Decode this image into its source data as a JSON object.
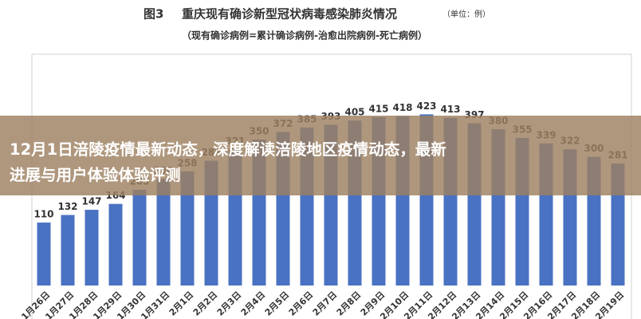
{
  "chart_data": {
    "type": "bar",
    "figure_label": "图3",
    "title": "重庆现有确诊新型冠状病毒感染肺炎情况",
    "unit": "（单位：例）",
    "subtitle": "（现有确诊病例=累计确诊病例-治愈出院病例-死亡病例）",
    "categories": [
      "1月26日",
      "1月27日",
      "1月28日",
      "1月29日",
      "1月30日",
      "1月31日",
      "2月1日",
      "2月2日",
      "2月3日",
      "2月4日",
      "2月5日",
      "2月6日",
      "2月7日",
      "2月8日",
      "2月9日",
      "2月10日",
      "2月11日",
      "2月12日",
      "2月13日",
      "2月14日",
      "2月15日",
      "2月16日",
      "2月17日",
      "2月18日",
      "2月19日"
    ],
    "values": [
      110,
      132,
      147,
      164,
      205,
      236,
      258,
      289,
      321,
      350,
      372,
      385,
      393,
      405,
      415,
      418,
      423,
      413,
      397,
      380,
      355,
      339,
      322,
      300,
      281
    ],
    "color": "#4a72c2",
    "ylim": [
      -72,
      470
    ]
  },
  "headline": [
    "12月1日涪陵疫情最新动态，深度解读涪陵地区疫情动态，最新",
    "进展与用户体验体验评测"
  ]
}
